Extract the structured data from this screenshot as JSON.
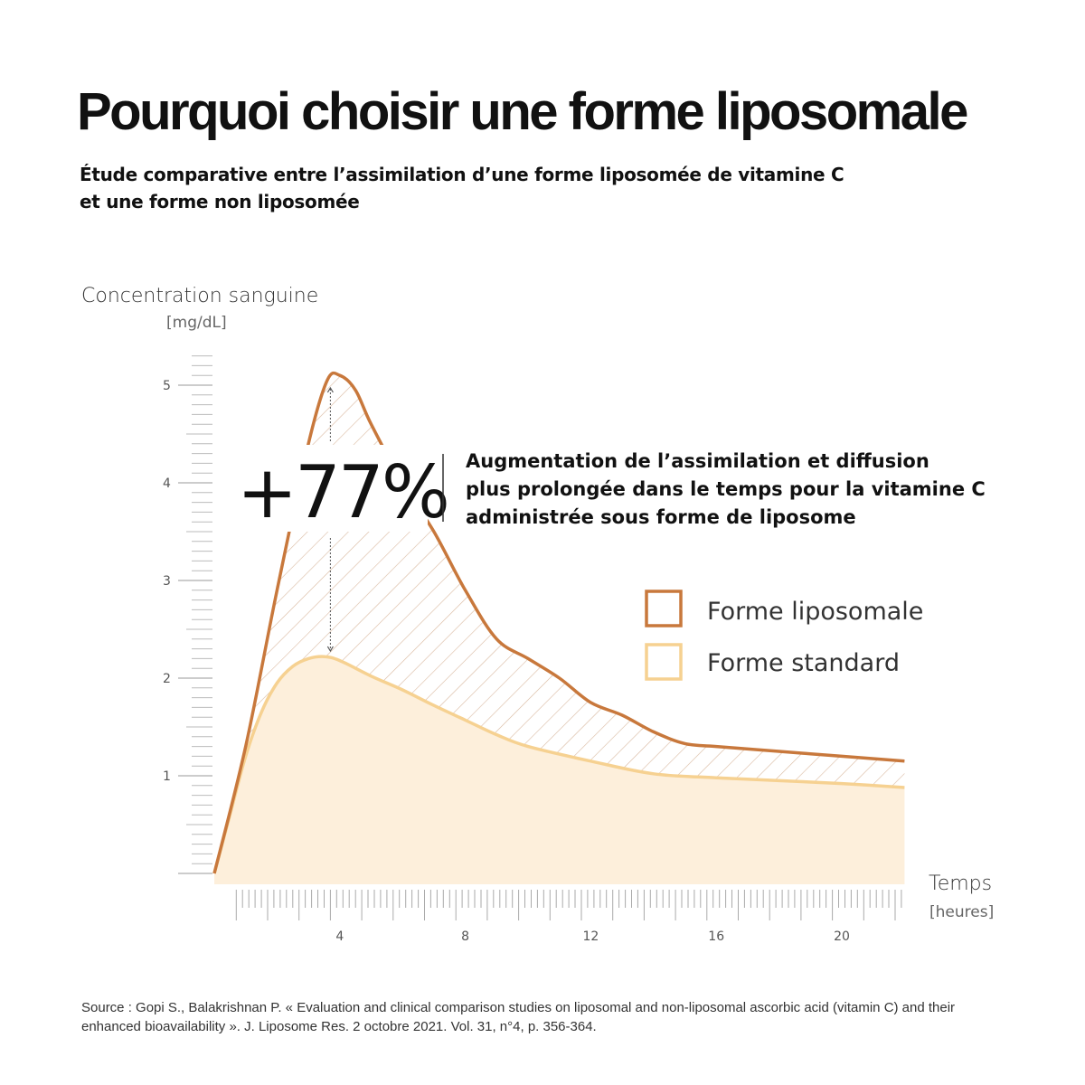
{
  "title": "Pourquoi choisir une forme liposomale",
  "subtitle_lines": [
    "Étude comparative entre l’assimilation d’une forme liposomée de vitamine C",
    "et une forme non liposomée"
  ],
  "chart_data": {
    "type": "area",
    "ylabel": "Concentration sanguine",
    "yunit": "[mg/dL]",
    "xlabel": "Temps",
    "xunit": "[heures]",
    "xlim": [
      0,
      22
    ],
    "ylim": [
      0,
      5.3
    ],
    "xticks": [
      4,
      8,
      12,
      16,
      20
    ],
    "yticks": [
      1,
      2,
      3,
      4,
      5
    ],
    "grid": false,
    "legend_position": "right",
    "series": [
      {
        "name": "Forme liposomale",
        "color": "#c8783c",
        "x": [
          0,
          1,
          2,
          3,
          3.6,
          4,
          4.5,
          5,
          6,
          7,
          8,
          9,
          10,
          11,
          12,
          13,
          14,
          15,
          16,
          18,
          20,
          22
        ],
        "y": [
          0,
          1.3,
          2.9,
          4.4,
          5.05,
          5.1,
          4.95,
          4.6,
          4.0,
          3.5,
          2.9,
          2.4,
          2.2,
          2.0,
          1.75,
          1.62,
          1.45,
          1.33,
          1.3,
          1.25,
          1.2,
          1.15
        ]
      },
      {
        "name": "Forme standard",
        "color": "#f6d191",
        "fill": "#fdefdb",
        "x": [
          0,
          0.5,
          1,
          1.5,
          2,
          2.5,
          3,
          3.5,
          4,
          5,
          6,
          7,
          8,
          9,
          10,
          12,
          14,
          16,
          18,
          20,
          22
        ],
        "y": [
          0,
          0.6,
          1.2,
          1.65,
          1.95,
          2.12,
          2.2,
          2.22,
          2.18,
          2.02,
          1.88,
          1.72,
          1.57,
          1.42,
          1.3,
          1.15,
          1.02,
          0.98,
          0.95,
          0.92,
          0.88
        ]
      }
    ],
    "annotation": {
      "value": "+77%",
      "text_lines": [
        "Augmentation de l’assimilation et diffusion",
        "plus prolongée dans le temps pour la vitamine C",
        "administrée sous forme de liposome"
      ]
    }
  },
  "source_text": "Source : Gopi S., Balakrishnan P. « Evaluation and clinical comparison studies on liposomal and non-liposomal ascorbic acid (vitamin C) and their enhanced bioavailability ». J. Liposome Res. 2 octobre 2021. Vol. 31, n°4, p. 356-364."
}
